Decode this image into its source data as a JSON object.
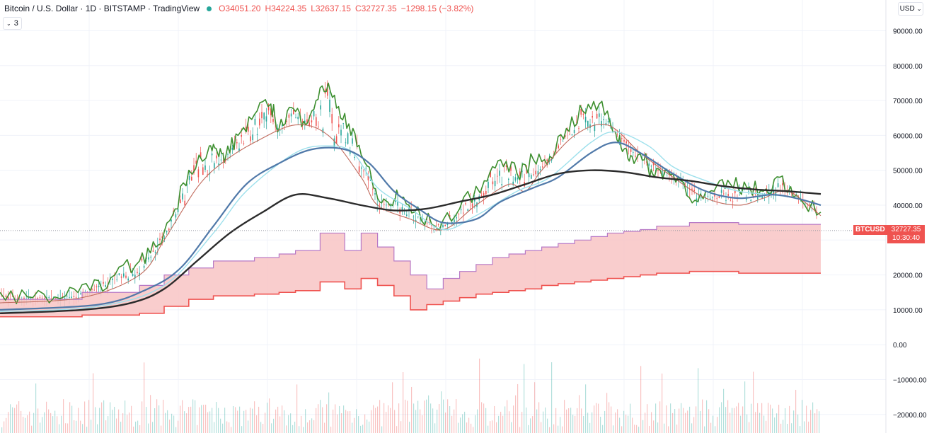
{
  "header": {
    "title": "Bitcoin / U.S. Dollar · 1D · BITSTAMP · TradingView",
    "ohlc": {
      "open": "O34051.20",
      "high": "H34224.35",
      "low": "L32637.15",
      "close": "C32727.35",
      "change": "−1298.15 (−3.82%)"
    },
    "collapse_label": "3",
    "currency_label": "USD"
  },
  "price_marker": {
    "symbol": "BTCUSD",
    "price": "32727.35",
    "countdown": "10:30:40"
  },
  "colors": {
    "bull": "#26a69a",
    "bear": "#ef5350",
    "envelope_upper": "#3d8f2f",
    "ma_fast": "#c06a5c",
    "ma_mid": "#5079a9",
    "ma_cyan": "#9de0ec",
    "ma_slow": "#2b2b2b",
    "cloud_fill": "#f8c4c4",
    "cloud_top": "#b779c6",
    "cloud_bottom": "#ef5350"
  },
  "chart_data": {
    "type": "line",
    "y_axis_ticks": [
      "90000.00",
      "80000.00",
      "70000.00",
      "60000.00",
      "50000.00",
      "40000.00",
      "30000.00",
      "20000.00",
      "10000.00",
      "0.00",
      "−10000.00",
      "−20000.00"
    ],
    "ylim": [
      -25000,
      98000
    ],
    "x_range": [
      0,
      100
    ],
    "grid": true,
    "series": [
      {
        "key": "envelope_upper",
        "x": [
          0,
          4,
          8,
          11,
          14,
          17,
          19,
          21,
          23,
          25.5,
          26.5,
          27.5,
          29,
          31,
          33,
          34,
          35.5,
          37,
          38.5,
          40,
          41.5,
          43,
          44.5,
          46,
          47.5,
          48.5,
          50.5,
          53,
          56,
          59,
          61,
          63,
          65,
          67,
          69,
          71,
          73,
          75,
          76,
          77,
          78.5,
          79.5,
          81,
          83,
          85,
          87,
          89,
          91,
          93,
          95,
          97,
          100
        ],
        "y": [
          15000,
          13500,
          14000,
          15500,
          20000,
          24000,
          28000,
          37000,
          50000,
          57000,
          55000,
          54000,
          60000,
          66000,
          69000,
          62000,
          68000,
          64000,
          70000,
          75000,
          65000,
          62000,
          52000,
          42000,
          40000,
          43000,
          38000,
          34000,
          39000,
          47000,
          53000,
          49000,
          53000,
          54000,
          62000,
          67000,
          69000,
          61000,
          56000,
          54000,
          53000,
          49000,
          50000,
          47000,
          41000,
          44000,
          46000,
          45000,
          44000,
          48000,
          43000,
          38000
        ]
      },
      {
        "key": "ma_fast",
        "x": [
          0,
          10,
          17,
          20,
          24,
          27,
          31,
          36,
          40,
          44,
          46,
          50,
          54,
          58,
          62,
          64,
          66,
          70,
          74,
          78,
          82,
          86,
          90,
          93,
          96,
          100
        ],
        "y": [
          12000,
          13500,
          20000,
          30000,
          45000,
          52000,
          58000,
          63000,
          60000,
          48000,
          40000,
          36000,
          33000,
          40000,
          46000,
          44000,
          50000,
          60000,
          63000,
          55000,
          48000,
          42000,
          40000,
          42000,
          44000,
          37000
        ]
      },
      {
        "key": "ma_cyan",
        "x": [
          0,
          12,
          20,
          26,
          30,
          36,
          40,
          43,
          46,
          50,
          54,
          58,
          63,
          67,
          72,
          75,
          79,
          82,
          86,
          90,
          94,
          97,
          100
        ],
        "y": [
          9500,
          11000,
          17000,
          32000,
          44000,
          55000,
          57000,
          55000,
          45000,
          39000,
          33000,
          37000,
          44000,
          48000,
          58000,
          61000,
          57000,
          51000,
          47000,
          44000,
          43000,
          42000,
          40000
        ]
      },
      {
        "key": "ma_mid",
        "x": [
          0,
          12,
          18,
          22,
          26,
          30,
          34,
          38,
          42,
          45,
          48,
          51,
          54,
          58,
          61,
          65,
          68,
          72,
          75,
          78,
          82,
          86,
          90,
          94,
          97,
          100
        ],
        "y": [
          10000,
          11500,
          16000,
          22000,
          34000,
          46000,
          52000,
          56000,
          56000,
          52000,
          44000,
          39000,
          35000,
          36000,
          41000,
          45000,
          48000,
          55000,
          58000,
          55000,
          49000,
          44000,
          42000,
          43000,
          42000,
          40000
        ]
      },
      {
        "key": "ma_slow",
        "x": [
          0,
          10,
          16,
          20,
          24,
          28,
          32,
          36,
          40,
          44,
          48,
          52,
          56,
          60,
          64,
          68,
          72,
          76,
          80,
          84,
          88,
          92,
          96,
          100
        ],
        "y": [
          9000,
          10000,
          12000,
          16000,
          24000,
          32000,
          38000,
          43000,
          42000,
          40000,
          38500,
          39000,
          41000,
          43000,
          46000,
          49000,
          50000,
          49500,
          48000,
          47000,
          45500,
          44500,
          44000,
          43200
        ]
      }
    ],
    "cloud_top": {
      "x": [
        0,
        10,
        10,
        17,
        17,
        20,
        20,
        23,
        23,
        26,
        26,
        31,
        31,
        34,
        34,
        36,
        36,
        39,
        39,
        42,
        42,
        44,
        44,
        46,
        46,
        48,
        48,
        50,
        50,
        52,
        52,
        54,
        54,
        56,
        56,
        58,
        58,
        60,
        60,
        62,
        62,
        64,
        64,
        66,
        66,
        68,
        68,
        70,
        70,
        72,
        72,
        74,
        74,
        76,
        76,
        78,
        78,
        80,
        80,
        84,
        84,
        90,
        90,
        100
      ],
      "y": [
        13000,
        13000,
        15000,
        15000,
        17000,
        17000,
        20000,
        20000,
        22000,
        22000,
        24000,
        24000,
        25000,
        25000,
        26000,
        26000,
        27000,
        27000,
        32000,
        32000,
        27000,
        27000,
        32000,
        32000,
        28000,
        28000,
        24000,
        24000,
        20000,
        20000,
        16000,
        16000,
        19000,
        19000,
        21000,
        21000,
        23000,
        23000,
        25000,
        25000,
        26000,
        26000,
        27000,
        27000,
        28000,
        28000,
        29000,
        29000,
        30000,
        30000,
        31000,
        31000,
        32000,
        32000,
        32500,
        32500,
        33000,
        33000,
        34000,
        34000,
        35000,
        35000,
        34500,
        34500
      ]
    },
    "cloud_bottom": {
      "x": [
        0,
        10,
        10,
        17,
        17,
        20,
        20,
        23,
        23,
        26,
        26,
        31,
        31,
        34,
        34,
        36,
        36,
        39,
        39,
        42,
        42,
        44,
        44,
        46,
        46,
        48,
        48,
        50,
        50,
        52,
        52,
        54,
        54,
        56,
        56,
        58,
        58,
        60,
        60,
        62,
        62,
        64,
        64,
        66,
        66,
        68,
        68,
        70,
        70,
        72,
        72,
        74,
        74,
        76,
        76,
        78,
        78,
        80,
        80,
        84,
        84,
        90,
        90,
        100
      ],
      "y": [
        8000,
        8000,
        8500,
        8500,
        9000,
        9000,
        11000,
        11000,
        13000,
        13000,
        14000,
        14000,
        14500,
        14500,
        15000,
        15000,
        15500,
        15500,
        18000,
        18000,
        16000,
        16000,
        19000,
        19000,
        17000,
        17000,
        14000,
        14000,
        10000,
        10000,
        11500,
        11500,
        12500,
        12500,
        13500,
        13500,
        14500,
        14500,
        15000,
        15000,
        15500,
        15500,
        16000,
        16000,
        17000,
        17000,
        17500,
        17500,
        18000,
        18000,
        18500,
        18500,
        19000,
        19000,
        19500,
        19500,
        20000,
        20000,
        20500,
        20500,
        21000,
        21000,
        20500,
        20500
      ]
    },
    "last_price": 32727.35
  }
}
